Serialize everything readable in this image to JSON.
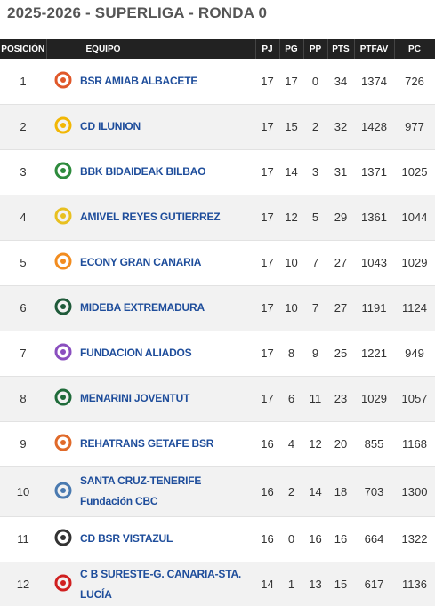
{
  "title": "2025-2026 - SUPERLIGA - RONDA 0",
  "table": {
    "header": [
      "POSICIÓN",
      "EQUIPO",
      "PJ",
      "PG",
      "PP",
      "PTS",
      "PTFAV",
      "PC"
    ],
    "rows": [
      [
        1,
        "BSR AMIAB ALBACETE",
        17,
        17,
        0,
        34,
        1374,
        726
      ],
      [
        2,
        "CD ILUNION",
        17,
        15,
        2,
        32,
        1428,
        977
      ],
      [
        3,
        "BBK BIDAIDEAK BILBAO",
        17,
        14,
        3,
        31,
        1371,
        1025
      ],
      [
        4,
        "AMIVEL REYES GUTIERREZ",
        17,
        12,
        5,
        29,
        1361,
        1044
      ],
      [
        5,
        "ECONY GRAN CANARIA",
        17,
        10,
        7,
        27,
        1043,
        1029
      ],
      [
        6,
        "MIDEBA EXTREMADURA",
        17,
        10,
        7,
        27,
        1191,
        1124
      ],
      [
        7,
        "FUNDACION ALIADOS",
        17,
        8,
        9,
        25,
        1221,
        949
      ],
      [
        8,
        "MENARINI JOVENTUT",
        17,
        6,
        11,
        23,
        1029,
        1057
      ],
      [
        9,
        "REHATRANS GETAFE BSR",
        16,
        4,
        12,
        20,
        855,
        1168
      ],
      [
        10,
        "SANTA CRUZ-TENERIFE\nFundación CBC",
        16,
        2,
        14,
        18,
        703,
        1300
      ],
      [
        11,
        "CD BSR VISTAZUL",
        16,
        0,
        16,
        16,
        664,
        1322
      ],
      [
        12,
        "C B SURESTE-G. CANARIA-STA. LUCÍA",
        14,
        1,
        13,
        15,
        617,
        1136
      ]
    ]
  }
}
